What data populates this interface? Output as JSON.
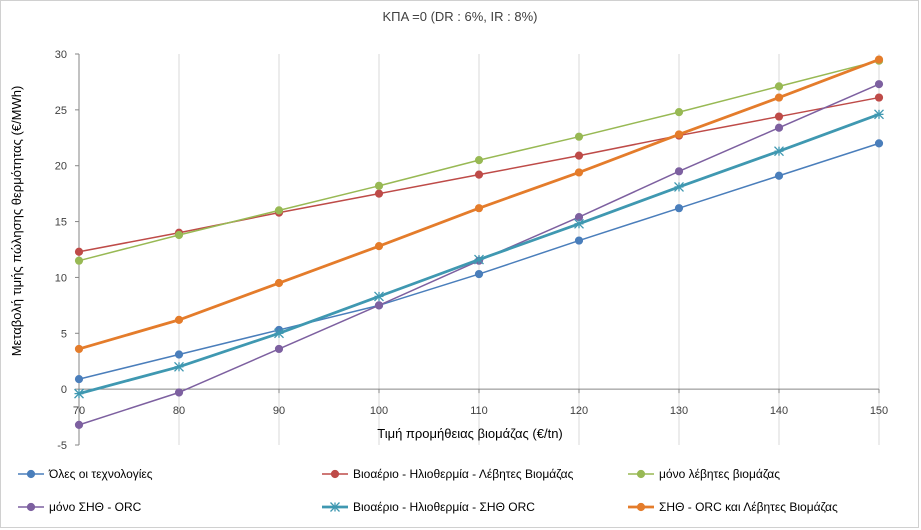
{
  "chart_data": {
    "type": "line",
    "title": "ΚΠΑ =0 (DR : 6%, IR : 8%)",
    "xlabel": "Τιμή προμήθειας βιομάζας (€/tn)",
    "ylabel": "Μεταβολή τιμής πώλησης θερμότητας (€/MWh)",
    "x": [
      70,
      80,
      90,
      100,
      110,
      120,
      130,
      140,
      150
    ],
    "xlim": [
      70,
      150
    ],
    "ylim": [
      -5,
      30
    ],
    "yticks": [
      -5,
      0,
      5,
      10,
      15,
      20,
      25,
      30
    ],
    "grid": "vertical",
    "legend_position": "bottom",
    "series": [
      {
        "name": "Όλες οι τεχνολογίες",
        "color": "#4a7ebb",
        "marker": "circle",
        "width": 1.5,
        "values": [
          0.9,
          3.1,
          5.3,
          7.5,
          10.3,
          13.3,
          16.2,
          19.1,
          22.0
        ]
      },
      {
        "name": "Βιοαέριο - Ηλιοθερμία - Λέβητες Βιομάζας",
        "color": "#be4b48",
        "marker": "circle",
        "width": 1.5,
        "values": [
          12.3,
          14.0,
          15.8,
          17.5,
          19.2,
          20.9,
          22.7,
          24.4,
          26.1
        ]
      },
      {
        "name": "μόνο λέβητες βιομάζας",
        "color": "#98b954",
        "marker": "circle",
        "width": 1.5,
        "values": [
          11.5,
          13.8,
          16.0,
          18.2,
          20.5,
          22.6,
          24.8,
          27.1,
          29.4
        ]
      },
      {
        "name": "μόνο ΣΗΘ - ORC",
        "color": "#7d60a0",
        "marker": "circle",
        "width": 1.5,
        "values": [
          -3.2,
          -0.3,
          3.6,
          7.5,
          11.5,
          15.4,
          19.5,
          23.4,
          27.3
        ]
      },
      {
        "name": "Βιοαέριο - Ηλιοθερμία - ΣΗΘ ORC",
        "color": "#3f98b1",
        "marker": "star",
        "width": 2.8,
        "values": [
          -0.4,
          2.0,
          5.0,
          8.3,
          11.6,
          14.8,
          18.1,
          21.3,
          24.6
        ]
      },
      {
        "name": "ΣΗΘ - ORC και Λέβητες Βιομάζας",
        "color": "#e47c2b",
        "marker": "circle",
        "width": 2.8,
        "values": [
          3.6,
          6.2,
          9.5,
          12.8,
          16.2,
          19.4,
          22.8,
          26.1,
          29.5
        ]
      }
    ]
  }
}
